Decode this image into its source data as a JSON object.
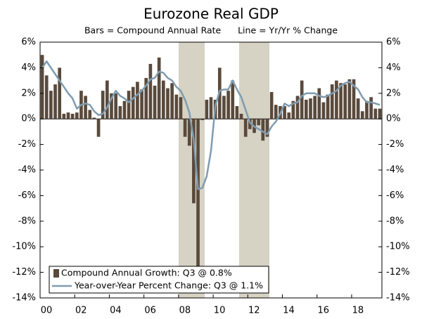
{
  "chart_data": {
    "type": "bar_line",
    "title": "Eurozone Real GDP",
    "subtitle": "Bars = Compound Annual Rate      Line = Yr/Yr % Change",
    "categories": [
      "00",
      null,
      null,
      null,
      null,
      null,
      null,
      null,
      "02",
      null,
      null,
      null,
      null,
      null,
      null,
      null,
      "04",
      null,
      null,
      null,
      null,
      null,
      null,
      null,
      "06",
      null,
      null,
      null,
      null,
      null,
      null,
      null,
      "08",
      null,
      null,
      null,
      null,
      null,
      null,
      null,
      "10",
      null,
      null,
      null,
      null,
      null,
      null,
      null,
      "12",
      null,
      null,
      null,
      null,
      null,
      null,
      null,
      "14",
      null,
      null,
      null,
      null,
      null,
      null,
      null,
      "16",
      null,
      null,
      null,
      null,
      null,
      null,
      null,
      "18",
      null,
      null,
      null,
      null,
      null,
      null
    ],
    "series": [
      {
        "name": "Compound Annual Growth: Q3 @ 0.8%",
        "color": "#5a4a3c",
        "kind": "bar",
        "values": [
          5.0,
          3.4,
          2.2,
          2.7,
          4.0,
          0.4,
          0.5,
          0.4,
          0.5,
          2.2,
          1.8,
          0.7,
          0.1,
          -1.4,
          2.2,
          3.0,
          2.0,
          2.0,
          1.0,
          1.4,
          2.2,
          2.5,
          2.9,
          2.3,
          3.2,
          4.3,
          2.6,
          4.8,
          3.0,
          2.4,
          2.8,
          1.9,
          1.7,
          -1.4,
          -2.1,
          -6.6,
          -11.8,
          -0.1,
          1.5,
          1.7,
          1.5,
          4.0,
          1.8,
          2.2,
          3.0,
          1.0,
          0.4,
          -1.4,
          -0.8,
          -1.1,
          -0.5,
          -1.7,
          -1.4,
          2.1,
          1.1,
          1.0,
          1.0,
          0.5,
          1.4,
          1.8,
          3.0,
          1.5,
          1.6,
          1.8,
          2.4,
          1.3,
          1.9,
          2.7,
          3.0,
          2.8,
          2.7,
          3.1,
          3.1,
          1.6,
          0.6,
          1.4,
          1.7,
          0.8,
          0.8
        ]
      },
      {
        "name": "Year-over-Year Percent Change: Q3 @ 1.1%",
        "color": "#7f9cb0",
        "kind": "line",
        "values": [
          4.0,
          4.5,
          4.0,
          3.5,
          3.0,
          2.5,
          2.0,
          1.6,
          0.8,
          1.1,
          1.2,
          1.1,
          0.6,
          0.3,
          0.4,
          0.9,
          1.6,
          2.2,
          1.8,
          1.6,
          1.3,
          1.6,
          1.9,
          2.2,
          2.6,
          3.1,
          3.2,
          3.7,
          3.6,
          3.2,
          3.0,
          2.5,
          2.2,
          1.5,
          0.5,
          -1.6,
          -5.5,
          -5.4,
          -4.5,
          -2.5,
          1.0,
          2.2,
          2.3,
          2.3,
          3.0,
          2.3,
          1.7,
          0.7,
          -0.3,
          -0.6,
          -0.8,
          -1.0,
          -1.2,
          -0.6,
          -0.2,
          0.4,
          1.2,
          1.0,
          1.2,
          1.3,
          1.8,
          2.0,
          2.0,
          2.0,
          1.8,
          1.7,
          1.8,
          2.0,
          2.2,
          2.6,
          2.8,
          2.9,
          2.6,
          2.3,
          1.7,
          1.3,
          1.3,
          1.2,
          1.1
        ]
      }
    ],
    "ylim": [
      -14,
      6
    ],
    "yticks": [
      {
        "value": -14,
        "label": "-14%"
      },
      {
        "value": -12,
        "label": "-12%"
      },
      {
        "value": -10,
        "label": "-10%"
      },
      {
        "value": -8,
        "label": "-8%"
      },
      {
        "value": -6,
        "label": "-6%"
      },
      {
        "value": -4,
        "label": "-4%"
      },
      {
        "value": -2,
        "label": "-2%"
      },
      {
        "value": 0,
        "label": "0%"
      },
      {
        "value": 2,
        "label": "2%"
      },
      {
        "value": 4,
        "label": "4%"
      },
      {
        "value": 6,
        "label": "6%"
      }
    ],
    "y2lim": [
      -14,
      6
    ],
    "y2ticks": [
      {
        "value": -14,
        "label": "-14%"
      },
      {
        "value": -12,
        "label": "-12%"
      },
      {
        "value": -10,
        "label": "-10%"
      },
      {
        "value": -8,
        "label": "-8%"
      },
      {
        "value": -6,
        "label": "-6%"
      },
      {
        "value": -4,
        "label": "-4%"
      },
      {
        "value": -2,
        "label": "-2%"
      },
      {
        "value": 0,
        "label": "0%"
      },
      {
        "value": 2,
        "label": "2%"
      },
      {
        "value": 4,
        "label": "4%"
      },
      {
        "value": 6,
        "label": "6%"
      }
    ],
    "legend": "lower left"
  }
}
